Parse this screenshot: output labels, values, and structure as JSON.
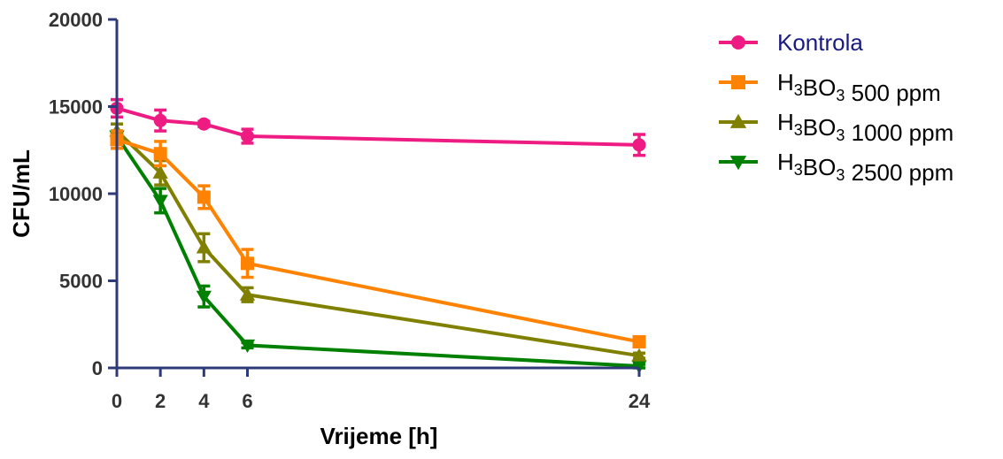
{
  "chart_data": {
    "type": "line",
    "title": "",
    "xlabel": "Vrijeme [h]",
    "ylabel": "CFU/mL",
    "xlim": [
      0,
      24
    ],
    "ylim": [
      0,
      20000
    ],
    "x_ticks": [
      0,
      2,
      4,
      6,
      24
    ],
    "y_ticks": [
      0,
      5000,
      10000,
      15000,
      20000
    ],
    "grid": false,
    "legend_position": "right",
    "axis_color": "#2f3a7a",
    "series": [
      {
        "name": "Kontrola",
        "legend": {
          "pre": "Kontrola",
          "sub1": "",
          "mid": "",
          "sub2": "",
          "post": ""
        },
        "color": "#ee1c82",
        "text_color": "#1a1a80",
        "marker": "circle",
        "x": [
          0,
          2,
          4,
          6,
          24
        ],
        "y": [
          14900,
          14200,
          14000,
          13300,
          12800
        ],
        "err": [
          500,
          600,
          150,
          400,
          600
        ]
      },
      {
        "name": "H3BO3 500 ppm",
        "legend": {
          "pre": "H",
          "sub1": "3",
          "mid": "BO",
          "sub2": "3",
          "post": " 500 ppm"
        },
        "color": "#ff8200",
        "text_color": "#000000",
        "marker": "square",
        "x": [
          0,
          2,
          4,
          6,
          24
        ],
        "y": [
          13100,
          12300,
          9800,
          6000,
          1500
        ],
        "err": [
          500,
          700,
          650,
          800,
          200
        ]
      },
      {
        "name": "H3BO3 1000 ppm",
        "legend": {
          "pre": "H",
          "sub1": "3",
          "mid": "BO",
          "sub2": "3",
          "post": " 1000 ppm"
        },
        "color": "#808000",
        "text_color": "#000000",
        "marker": "triangle-up",
        "x": [
          0,
          2,
          4,
          6,
          24
        ],
        "y": [
          13600,
          11200,
          6900,
          4200,
          700
        ],
        "err": [
          400,
          700,
          800,
          400,
          150
        ]
      },
      {
        "name": "H3BO3 2500 ppm",
        "legend": {
          "pre": "H",
          "sub1": "3",
          "mid": "BO",
          "sub2": "3",
          "post": " 2500 ppm"
        },
        "color": "#008000",
        "text_color": "#000000",
        "marker": "triangle-down",
        "x": [
          0,
          2,
          4,
          6,
          24
        ],
        "y": [
          13300,
          9600,
          4100,
          1300,
          100
        ],
        "err": [
          300,
          700,
          600,
          150,
          100
        ]
      }
    ]
  }
}
